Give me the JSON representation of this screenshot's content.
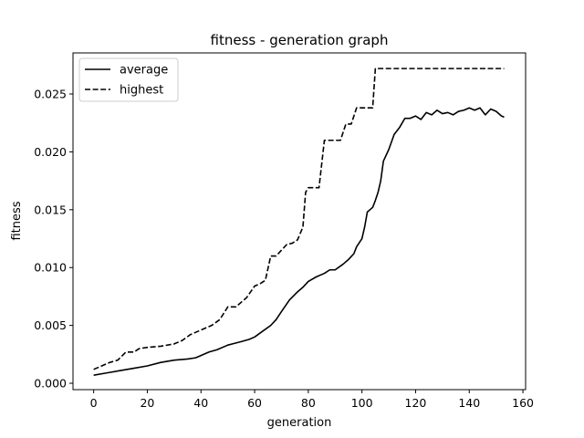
{
  "chart_data": {
    "type": "line",
    "title": "fitness - generation graph",
    "xlabel": "generation",
    "ylabel": "fitness",
    "xlim": [
      -7.7,
      161
    ],
    "ylim": [
      -0.00055,
      0.02855
    ],
    "xticks": [
      0,
      20,
      40,
      60,
      80,
      100,
      120,
      140,
      160
    ],
    "xtick_labels": [
      "0",
      "20",
      "40",
      "60",
      "80",
      "100",
      "120",
      "140",
      "160"
    ],
    "yticks": [
      0.0,
      0.005,
      0.01,
      0.015,
      0.02,
      0.025
    ],
    "ytick_labels": [
      "0.000",
      "0.005",
      "0.010",
      "0.015",
      "0.020",
      "0.025"
    ],
    "grid": false,
    "legend_position": "upper-left",
    "series": [
      {
        "name": "average",
        "style": "solid",
        "color": "#000000",
        "x": [
          0,
          5,
          10,
          15,
          20,
          25,
          30,
          35,
          38,
          40,
          43,
          46,
          50,
          55,
          58,
          60,
          63,
          66,
          68,
          70,
          73,
          76,
          78,
          80,
          83,
          86,
          88,
          90,
          93,
          95,
          97,
          98,
          100,
          101,
          102,
          103,
          104,
          105,
          106,
          107,
          108,
          110,
          112,
          114,
          116,
          118,
          120,
          122,
          124,
          126,
          128,
          130,
          132,
          134,
          136,
          138,
          140,
          142,
          144,
          146,
          148,
          150,
          152,
          153
        ],
        "y": [
          0.0007,
          0.0009,
          0.0011,
          0.0013,
          0.0015,
          0.0018,
          0.002,
          0.0021,
          0.0022,
          0.0024,
          0.0027,
          0.0029,
          0.0033,
          0.0036,
          0.0038,
          0.004,
          0.0045,
          0.005,
          0.0055,
          0.0062,
          0.0072,
          0.0079,
          0.0083,
          0.0088,
          0.0092,
          0.0095,
          0.0098,
          0.0098,
          0.0103,
          0.0107,
          0.0112,
          0.0118,
          0.0125,
          0.0135,
          0.0148,
          0.015,
          0.0152,
          0.0158,
          0.0165,
          0.0175,
          0.0192,
          0.0202,
          0.0215,
          0.0221,
          0.0229,
          0.0229,
          0.0231,
          0.0228,
          0.0234,
          0.0232,
          0.0236,
          0.0233,
          0.0234,
          0.0232,
          0.0235,
          0.0236,
          0.0238,
          0.0236,
          0.0238,
          0.0232,
          0.0237,
          0.0235,
          0.0231,
          0.023
        ]
      },
      {
        "name": "highest",
        "style": "dashed",
        "color": "#000000",
        "x": [
          0,
          3,
          6,
          9,
          12,
          15,
          17,
          20,
          25,
          30,
          33,
          36,
          40,
          44,
          47,
          50,
          53,
          57,
          60,
          62,
          64,
          66,
          68,
          70,
          72,
          74,
          76,
          78,
          79,
          80,
          82,
          84,
          86,
          88,
          90,
          92,
          94,
          96,
          98,
          100,
          102,
          104,
          105,
          110,
          120,
          130,
          140,
          153
        ],
        "y": [
          0.0012,
          0.0015,
          0.0018,
          0.002,
          0.0027,
          0.0027,
          0.003,
          0.0031,
          0.0032,
          0.0034,
          0.0037,
          0.0042,
          0.0046,
          0.005,
          0.0055,
          0.0066,
          0.0066,
          0.0074,
          0.0084,
          0.0086,
          0.0089,
          0.011,
          0.011,
          0.0115,
          0.012,
          0.0121,
          0.0124,
          0.0135,
          0.0165,
          0.0169,
          0.0169,
          0.0169,
          0.021,
          0.021,
          0.021,
          0.021,
          0.0224,
          0.0224,
          0.0238,
          0.0238,
          0.0238,
          0.0238,
          0.0272,
          0.0272,
          0.0272,
          0.0272,
          0.0272,
          0.0272
        ]
      }
    ]
  }
}
